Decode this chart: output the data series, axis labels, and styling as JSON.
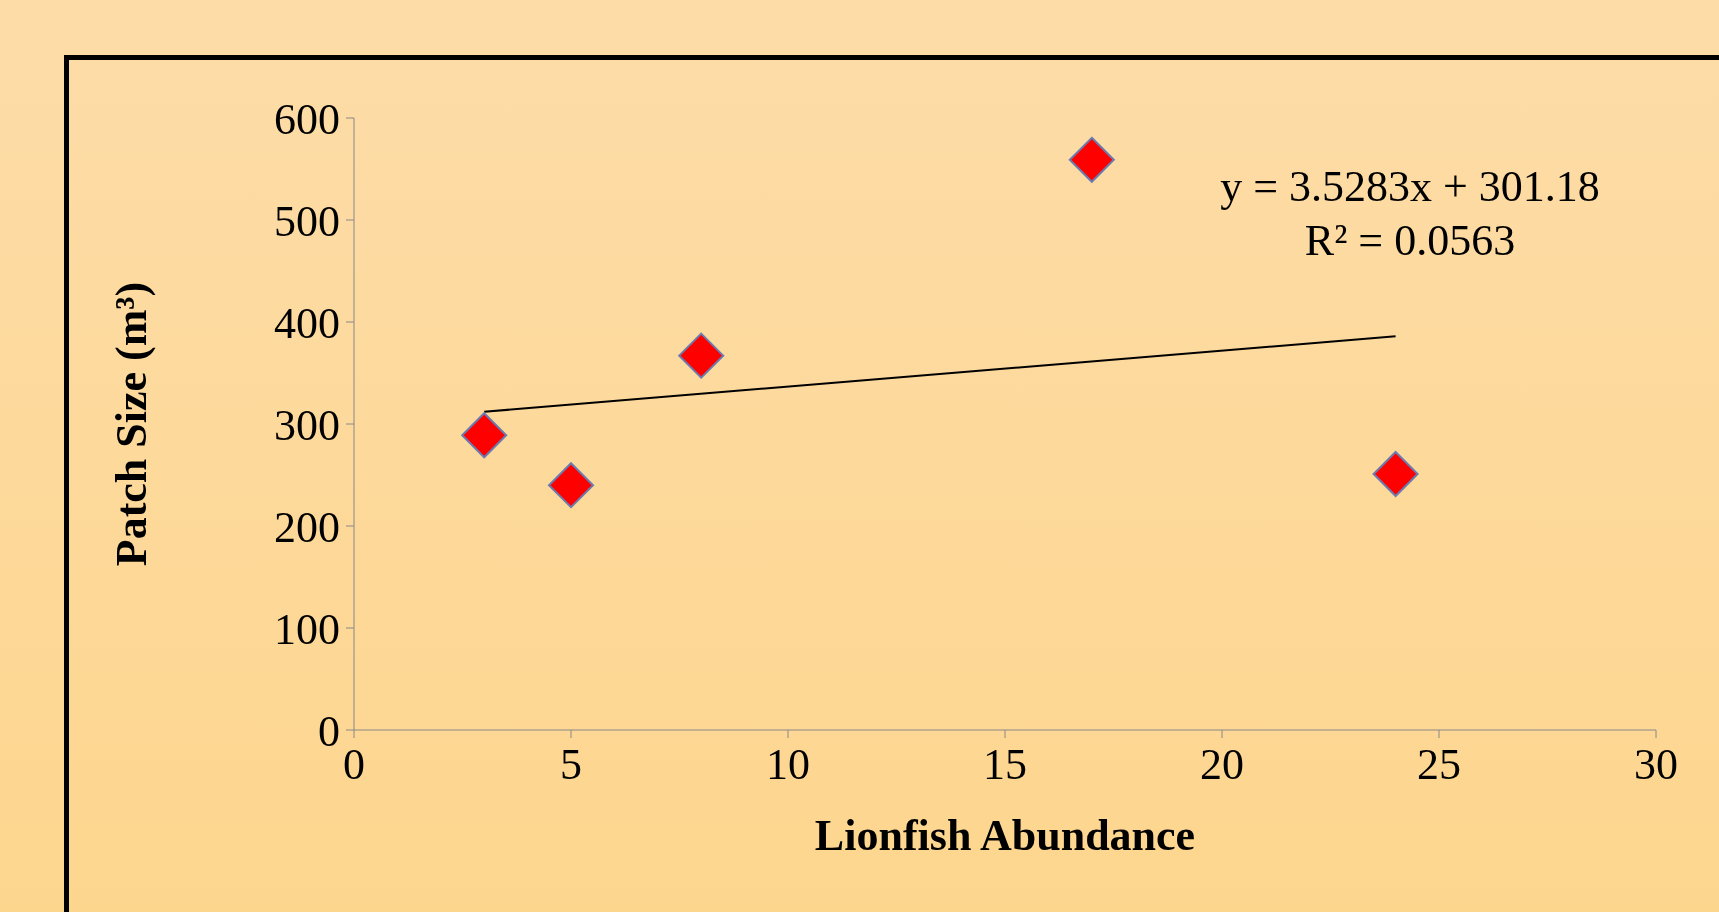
{
  "chart_data": {
    "type": "scatter",
    "xlabel": "Lionfish Abundance",
    "ylabel": "Patch Size (m³)",
    "xlim": [
      0,
      30
    ],
    "xticks": [
      0,
      5,
      10,
      15,
      20,
      25,
      30
    ],
    "ylim": [
      0,
      600
    ],
    "yticks": [
      0,
      100,
      200,
      300,
      400,
      500,
      600
    ],
    "grid": false,
    "legend": false,
    "series": [
      {
        "color": "#ff0000",
        "marker": "diamond",
        "x": [
          3,
          5,
          8,
          17,
          24
        ],
        "values": [
          289,
          240,
          367,
          559,
          251
        ]
      },
      {
        "type": "line",
        "color": "#000000",
        "marker": "none",
        "x": [
          3,
          24
        ],
        "values": [
          312,
          386
        ],
        "line_style": "solid"
      }
    ],
    "annotations": [
      "y = 3.5283x + 301.18",
      "R² = 0.0563"
    ]
  }
}
